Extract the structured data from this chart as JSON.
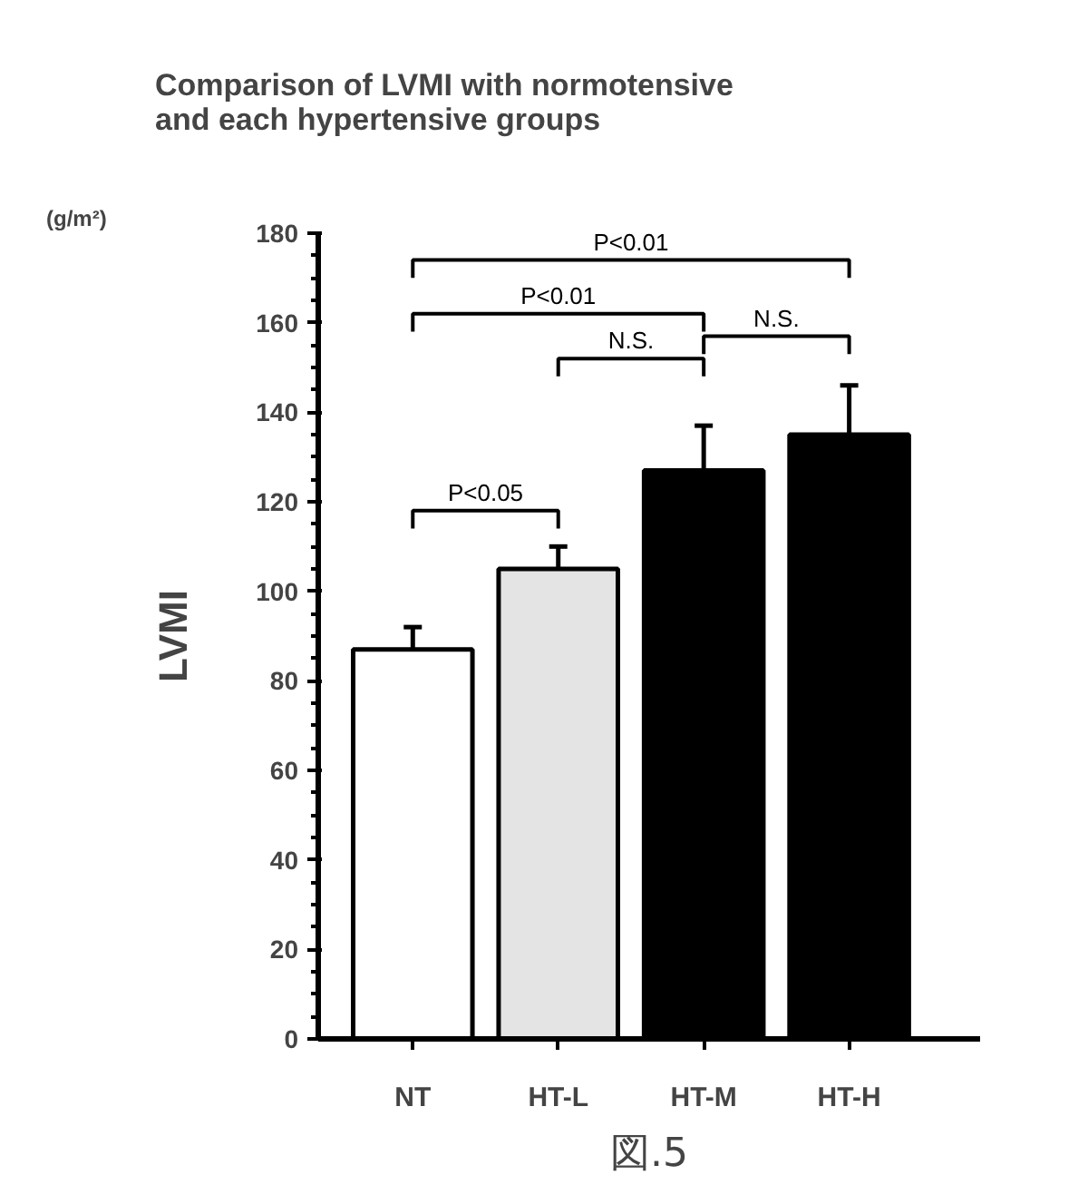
{
  "chart_data": {
    "type": "bar",
    "title": "Comparison of LVMI with normotensive\nand each hypertensive groups",
    "ylabel": "LVMI",
    "categories": [
      "NT",
      "HT-L",
      "HT-M",
      "HT-H"
    ],
    "values": [
      87,
      105,
      127,
      135
    ],
    "errors": [
      5,
      5,
      10,
      11
    ],
    "colors": [
      "#ffffff",
      "#e4e4e4",
      "#000000",
      "#000000"
    ],
    "ylim": [
      0,
      180
    ],
    "yticks": [
      0,
      20,
      40,
      60,
      80,
      100,
      120,
      140,
      160,
      180
    ],
    "grid": false,
    "annotations": [
      "P<0.01",
      "P<0.01",
      "N.S.",
      "N.S.",
      "P<0.05",
      "(g/m²)",
      "図.5"
    ]
  }
}
